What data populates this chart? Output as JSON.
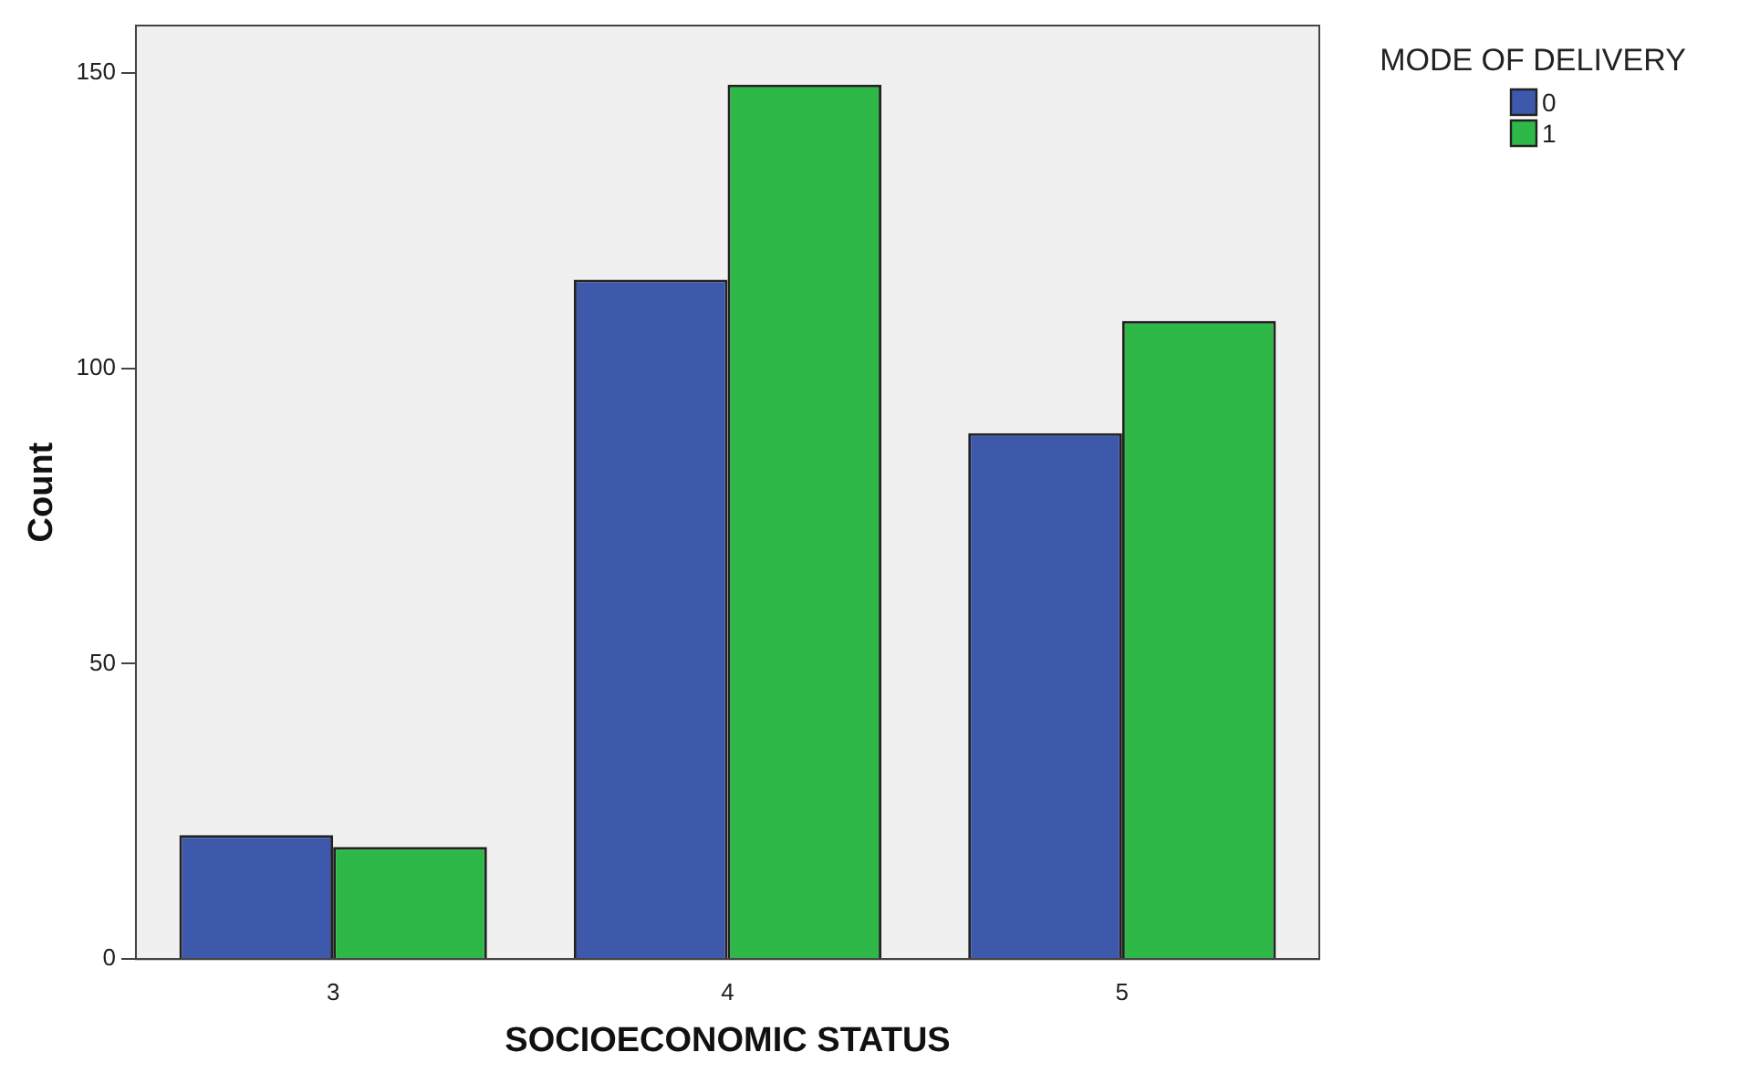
{
  "chart_data": {
    "type": "bar",
    "xlabel": "SOCIOECONOMIC STATUS",
    "ylabel": "Count",
    "legend_title": "MODE OF DELIVERY",
    "categories": [
      "3",
      "4",
      "5"
    ],
    "series": [
      {
        "name": "0",
        "color": "#3e58ac",
        "values": [
          21,
          115,
          89
        ]
      },
      {
        "name": "1",
        "color": "#2eb848",
        "values": [
          19,
          148,
          108
        ]
      }
    ],
    "ylim": [
      0,
      158
    ],
    "yticks": [
      0,
      50,
      100,
      150
    ],
    "grid": false,
    "legend": "top right"
  }
}
